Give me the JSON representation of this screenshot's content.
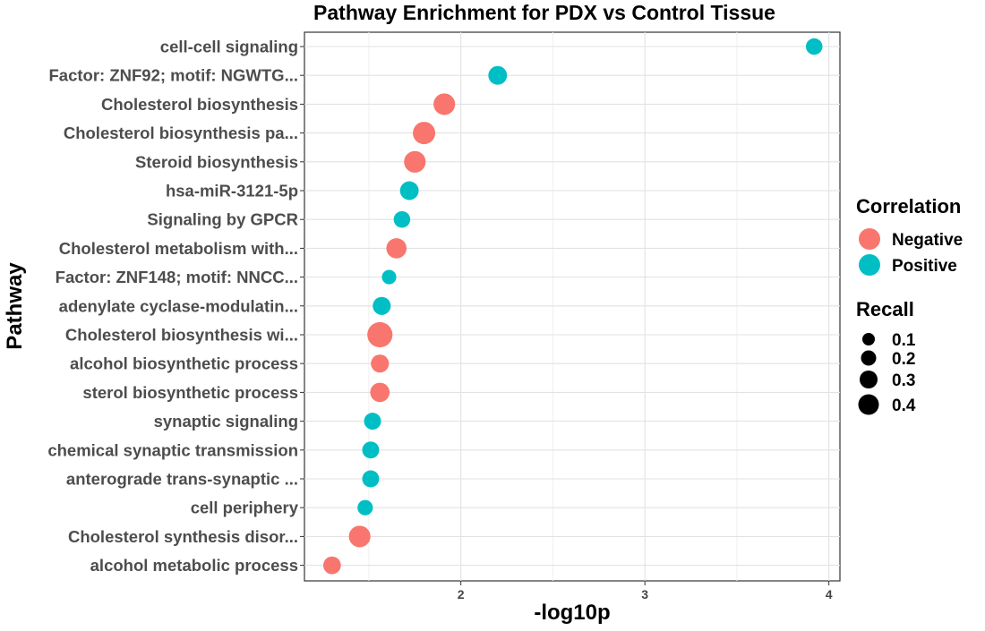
{
  "chart_data": {
    "type": "scatter",
    "title": "Pathway Enrichment for PDX vs Control Tissue",
    "xlabel": "-log10p",
    "ylabel": "Pathway",
    "xlim": [
      1.15,
      4.06
    ],
    "xticks": [
      2,
      3,
      4
    ],
    "grid": true,
    "legend_position": "right",
    "legend": {
      "color_title": "Correlation",
      "color_items": [
        {
          "label": "Negative",
          "color": "#F8766D"
        },
        {
          "label": "Positive",
          "color": "#00BFC4"
        }
      ],
      "size_title": "Recall",
      "size_items": [
        "0.1",
        "0.2",
        "0.3",
        "0.4"
      ]
    },
    "categories": [
      "cell-cell signaling",
      "Factor: ZNF92; motif: NGWTG...",
      "Cholesterol biosynthesis",
      "Cholesterol biosynthesis pa...",
      "Steroid biosynthesis",
      "hsa-miR-3121-5p",
      "Signaling by GPCR",
      "Cholesterol metabolism with...",
      "Factor: ZNF148; motif: NNCC...",
      "adenylate cyclase-modulatin...",
      "Cholesterol biosynthesis wi...",
      "alcohol biosynthetic process",
      "sterol biosynthetic process",
      "synaptic signaling",
      "chemical synaptic transmission",
      "anterograde trans-synaptic ...",
      "cell periphery",
      "Cholesterol synthesis disor...",
      "alcohol metabolic process"
    ],
    "series": [
      {
        "name": "Negative",
        "color": "#F8766D",
        "points": [
          {
            "pathway": "Cholesterol biosynthesis",
            "x": 1.91,
            "recall": 0.3
          },
          {
            "pathway": "Cholesterol biosynthesis pa...",
            "x": 1.8,
            "recall": 0.33
          },
          {
            "pathway": "Steroid biosynthesis",
            "x": 1.75,
            "recall": 0.3
          },
          {
            "pathway": "Cholesterol metabolism with...",
            "x": 1.65,
            "recall": 0.25
          },
          {
            "pathway": "Cholesterol biosynthesis wi...",
            "x": 1.56,
            "recall": 0.45
          },
          {
            "pathway": "alcohol biosynthetic process",
            "x": 1.56,
            "recall": 0.18
          },
          {
            "pathway": "sterol biosynthetic process",
            "x": 1.56,
            "recall": 0.22
          },
          {
            "pathway": "Cholesterol synthesis disor...",
            "x": 1.45,
            "recall": 0.3
          },
          {
            "pathway": "alcohol metabolic process",
            "x": 1.3,
            "recall": 0.17
          }
        ]
      },
      {
        "name": "Positive",
        "color": "#00BFC4",
        "points": [
          {
            "pathway": "cell-cell signaling",
            "x": 3.92,
            "recall": 0.14
          },
          {
            "pathway": "Factor: ZNF92; motif: NGWTG...",
            "x": 2.2,
            "recall": 0.2
          },
          {
            "pathway": "hsa-miR-3121-5p",
            "x": 1.72,
            "recall": 0.2
          },
          {
            "pathway": "Signaling by GPCR",
            "x": 1.68,
            "recall": 0.14
          },
          {
            "pathway": "Factor: ZNF148; motif: NNCC...",
            "x": 1.61,
            "recall": 0.09
          },
          {
            "pathway": "adenylate cyclase-modulatin...",
            "x": 1.57,
            "recall": 0.18
          },
          {
            "pathway": "synaptic signaling",
            "x": 1.52,
            "recall": 0.15
          },
          {
            "pathway": "chemical synaptic transmission",
            "x": 1.51,
            "recall": 0.15
          },
          {
            "pathway": "anterograde trans-synaptic ...",
            "x": 1.51,
            "recall": 0.15
          },
          {
            "pathway": "cell periphery",
            "x": 1.48,
            "recall": 0.11
          }
        ]
      }
    ]
  }
}
